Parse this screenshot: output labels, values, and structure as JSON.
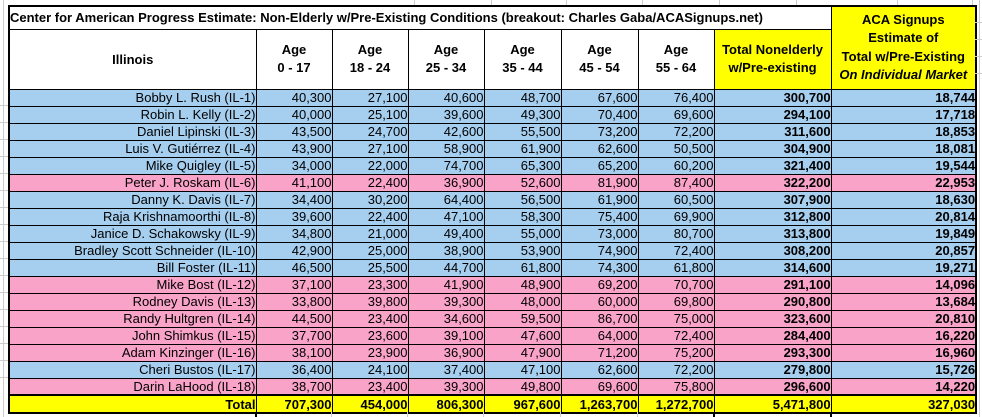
{
  "title": "Center for American Progress Estimate: Non-Elderly w/Pre-Existing Conditions (breakout: Charles Gaba/ACASignups.net)",
  "state_label": "Illinois",
  "age_columns": [
    {
      "line1": "Age",
      "line2": "0 - 17"
    },
    {
      "line1": "Age",
      "line2": "18 - 24"
    },
    {
      "line1": "Age",
      "line2": "25 - 34"
    },
    {
      "line1": "Age",
      "line2": "35 - 44"
    },
    {
      "line1": "Age",
      "line2": "45 - 54"
    },
    {
      "line1": "Age",
      "line2": "55 - 64"
    }
  ],
  "total_col": {
    "line1": "Total Nonelderly",
    "line2": "w/Pre-existing"
  },
  "aca_col": {
    "line1": "ACA Signups",
    "line2": "Estimate of",
    "line3": "Total w/Pre-Existing",
    "line4": "On Individual Market"
  },
  "rows": [
    {
      "name": "Bobby L. Rush (IL-1)",
      "party": "D",
      "values": [
        "40,300",
        "27,100",
        "40,600",
        "48,700",
        "67,600",
        "76,400"
      ],
      "total": "300,700",
      "aca": "18,744"
    },
    {
      "name": "Robin L. Kelly (IL-2)",
      "party": "D",
      "values": [
        "40,000",
        "25,100",
        "39,600",
        "49,300",
        "70,400",
        "69,600"
      ],
      "total": "294,100",
      "aca": "17,718"
    },
    {
      "name": "Daniel Lipinski (IL-3)",
      "party": "D",
      "values": [
        "43,500",
        "24,700",
        "42,600",
        "55,500",
        "73,200",
        "72,200"
      ],
      "total": "311,600",
      "aca": "18,853"
    },
    {
      "name": "Luis V. Gutiérrez (IL-4)",
      "party": "D",
      "values": [
        "43,900",
        "27,100",
        "58,900",
        "61,900",
        "62,600",
        "50,500"
      ],
      "total": "304,900",
      "aca": "18,081"
    },
    {
      "name": "Mike Quigley (IL-5)",
      "party": "D",
      "values": [
        "34,000",
        "22,000",
        "74,700",
        "65,300",
        "65,200",
        "60,200"
      ],
      "total": "321,400",
      "aca": "19,544"
    },
    {
      "name": "Peter J. Roskam (IL-6)",
      "party": "R",
      "values": [
        "41,100",
        "22,400",
        "36,900",
        "52,600",
        "81,900",
        "87,400"
      ],
      "total": "322,200",
      "aca": "22,953"
    },
    {
      "name": "Danny K. Davis (IL-7)",
      "party": "D",
      "values": [
        "34,400",
        "30,200",
        "64,400",
        "56,500",
        "61,900",
        "60,500"
      ],
      "total": "307,900",
      "aca": "18,630"
    },
    {
      "name": "Raja Krishnamoorthi (IL-8)",
      "party": "D",
      "values": [
        "39,600",
        "22,400",
        "47,100",
        "58,300",
        "75,400",
        "69,900"
      ],
      "total": "312,800",
      "aca": "20,814"
    },
    {
      "name": "Janice D. Schakowsky (IL-9)",
      "party": "D",
      "values": [
        "34,800",
        "21,000",
        "49,400",
        "55,000",
        "73,000",
        "80,700"
      ],
      "total": "313,800",
      "aca": "19,849"
    },
    {
      "name": "Bradley Scott Schneider (IL-10)",
      "party": "D",
      "values": [
        "42,900",
        "25,000",
        "38,900",
        "53,900",
        "74,900",
        "72,400"
      ],
      "total": "308,200",
      "aca": "20,857"
    },
    {
      "name": "Bill Foster (IL-11)",
      "party": "D",
      "values": [
        "46,500",
        "25,500",
        "44,700",
        "61,800",
        "74,300",
        "61,800"
      ],
      "total": "314,600",
      "aca": "19,271"
    },
    {
      "name": "Mike Bost (IL-12)",
      "party": "R",
      "values": [
        "37,100",
        "23,300",
        "41,900",
        "48,900",
        "69,200",
        "70,700"
      ],
      "total": "291,100",
      "aca": "14,096"
    },
    {
      "name": "Rodney Davis (IL-13)",
      "party": "R",
      "values": [
        "33,800",
        "39,800",
        "39,300",
        "48,000",
        "60,000",
        "69,800"
      ],
      "total": "290,800",
      "aca": "13,684"
    },
    {
      "name": "Randy Hultgren (IL-14)",
      "party": "R",
      "values": [
        "44,500",
        "23,400",
        "34,600",
        "59,500",
        "86,700",
        "75,000"
      ],
      "total": "323,600",
      "aca": "20,810"
    },
    {
      "name": "John Shimkus (IL-15)",
      "party": "R",
      "values": [
        "37,700",
        "23,600",
        "39,100",
        "47,600",
        "64,000",
        "72,400"
      ],
      "total": "284,400",
      "aca": "16,220"
    },
    {
      "name": "Adam Kinzinger (IL-16)",
      "party": "R",
      "values": [
        "38,100",
        "23,900",
        "36,900",
        "47,900",
        "71,200",
        "75,200"
      ],
      "total": "293,300",
      "aca": "16,960"
    },
    {
      "name": "Cheri Bustos (IL-17)",
      "party": "D",
      "values": [
        "36,400",
        "24,100",
        "37,400",
        "47,100",
        "62,600",
        "72,200"
      ],
      "total": "279,800",
      "aca": "15,726"
    },
    {
      "name": "Darin LaHood (IL-18)",
      "party": "R",
      "values": [
        "38,700",
        "23,400",
        "39,300",
        "49,800",
        "69,600",
        "75,800"
      ],
      "total": "296,600",
      "aca": "14,220"
    }
  ],
  "total_row": {
    "label": "Total",
    "values": [
      "707,300",
      "454,000",
      "806,300",
      "967,600",
      "1,263,700",
      "1,272,700"
    ],
    "total": "5,471,800",
    "aca": "327,030"
  },
  "colors": {
    "dem_row": "#a6ceef",
    "rep_row": "#f9a3c9",
    "highlight": "#ffff00",
    "border": "#000000"
  }
}
